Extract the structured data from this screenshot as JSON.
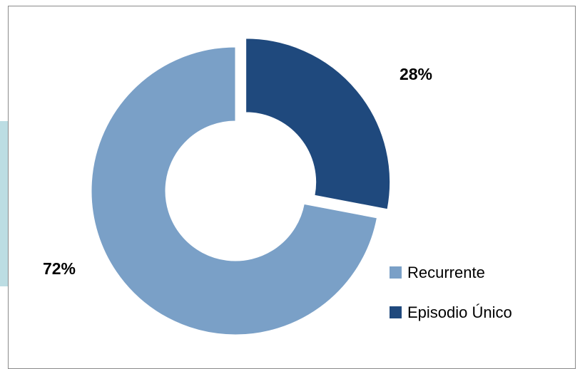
{
  "chart_data": {
    "type": "pie",
    "variant": "donut",
    "title": "",
    "categories": [
      "Recurrente",
      "Episodio Único"
    ],
    "values": [
      72,
      28
    ],
    "data_labels": [
      "72%",
      "28%"
    ],
    "colors": [
      "#7aa0c7",
      "#1f497d"
    ],
    "exploded": [
      "Episodio Único"
    ],
    "legend_position": "right-bottom",
    "grid": false
  }
}
